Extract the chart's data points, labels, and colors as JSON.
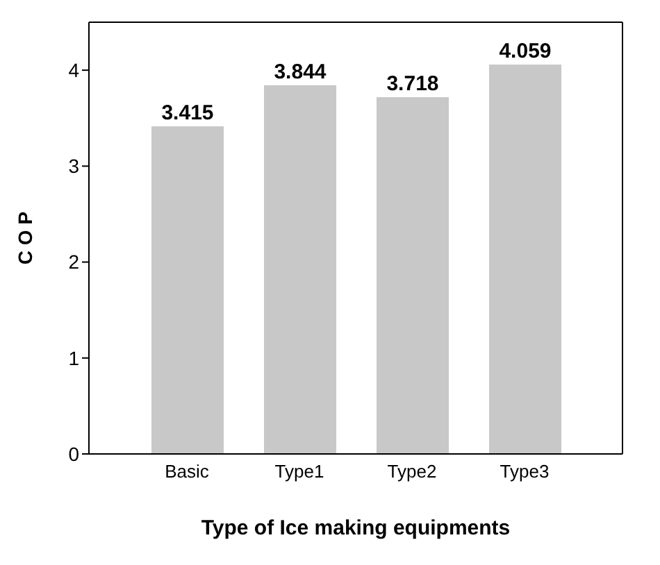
{
  "chart_data": {
    "type": "bar",
    "xlabel": "Type of Ice making equipments",
    "ylabel": "C O P",
    "categories": [
      "Basic",
      "Type1",
      "Type2",
      "Type3"
    ],
    "values": [
      3.415,
      3.844,
      3.718,
      4.059
    ],
    "color": "#c8c8c8",
    "ylim": [
      0,
      4.5
    ],
    "yticks": [
      0,
      1,
      2,
      3,
      4
    ],
    "data_labels": true
  }
}
